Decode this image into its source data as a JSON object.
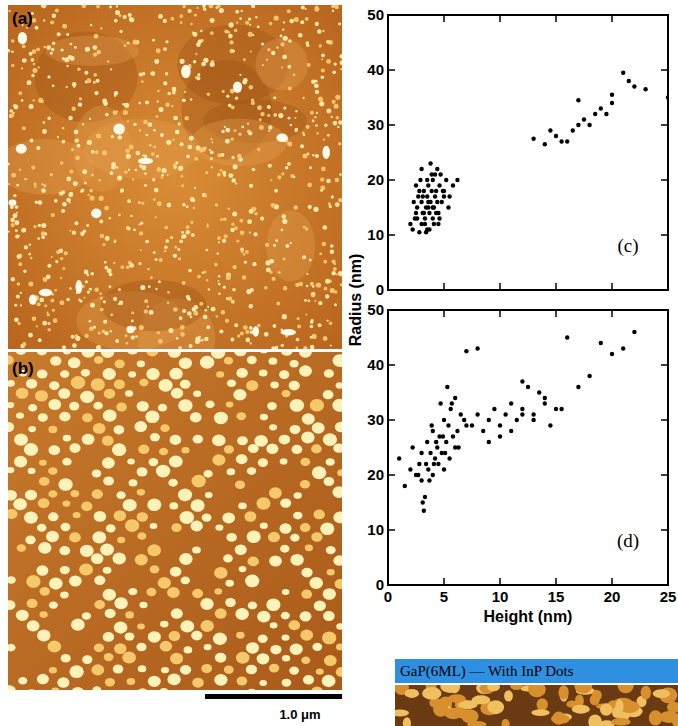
{
  "images": [
    {
      "label": "(a)"
    },
    {
      "label": "(b)"
    }
  ],
  "scale_bar": {
    "label": "1.0 μm"
  },
  "inset": {
    "title": "GaP(6ML) — With InP Dots"
  },
  "chart_data": [
    {
      "type": "scatter",
      "ylabel": "Radius (nm)",
      "annotations": [
        "(c)"
      ],
      "color": "#000000",
      "marker": "circle",
      "tick_labels": "y",
      "xlim": [
        0,
        25
      ],
      "xticks": [
        0,
        5,
        10,
        15,
        20,
        25
      ],
      "ylim": [
        0,
        50
      ],
      "yticks": [
        0,
        10,
        20,
        30,
        40,
        50
      ],
      "x": [
        2.0,
        2.2,
        2.4,
        2.5,
        2.6,
        2.8,
        3.0,
        3.0,
        3.1,
        3.2,
        3.3,
        3.4,
        3.5,
        3.5,
        3.6,
        3.7,
        3.8,
        3.9,
        4.0,
        4.0,
        4.1,
        4.2,
        4.3,
        4.4,
        4.5,
        4.6,
        4.8,
        5.0,
        5.2,
        5.5,
        5.8,
        6.2,
        2.3,
        2.7,
        2.9,
        3.3,
        3.6,
        3.9,
        4.2,
        4.6,
        5.0,
        5.4,
        2.5,
        3.0,
        3.4,
        3.8,
        4.1,
        4.4,
        3.2,
        3.7,
        4.3,
        4.7,
        2.8,
        3.5,
        4.0,
        3.1,
        4.9,
        2.6,
        3.6,
        4.5,
        13,
        14,
        14.5,
        15,
        15.5,
        16,
        16.5,
        17,
        17,
        17.5,
        18,
        18.5,
        19,
        19.5,
        20,
        20,
        21,
        21.5,
        22,
        23,
        25
      ],
      "values": [
        12,
        11,
        13,
        14,
        15,
        10.5,
        12,
        16,
        14,
        18,
        13,
        15,
        17,
        11,
        19,
        14,
        16,
        21,
        13,
        20,
        15,
        17,
        18,
        22,
        14,
        19,
        16,
        18,
        20,
        17,
        19,
        20,
        16,
        17,
        20,
        12,
        15,
        18,
        21,
        13,
        17,
        15,
        19,
        22,
        10.5,
        23,
        12,
        16,
        14,
        11,
        14,
        21,
        18,
        20,
        15,
        17,
        18,
        13,
        16,
        12,
        27.5,
        26.5,
        29,
        28,
        27,
        27,
        29,
        30,
        34.5,
        31,
        30,
        32,
        33,
        32,
        34,
        35.5,
        39.5,
        38,
        37,
        36.5,
        35
      ]
    },
    {
      "type": "scatter",
      "xlabel": "Height (nm)",
      "annotations": [
        "(d)"
      ],
      "color": "#000000",
      "marker": "circle",
      "xlim": [
        0,
        25
      ],
      "xticks": [
        0,
        5,
        10,
        15,
        20,
        25
      ],
      "ylim": [
        0,
        50
      ],
      "yticks": [
        0,
        10,
        20,
        30,
        40,
        50
      ],
      "x": [
        1.0,
        1.5,
        2.0,
        2.2,
        2.5,
        2.8,
        3.0,
        3.0,
        3.2,
        3.4,
        3.5,
        3.6,
        3.8,
        4.0,
        4.0,
        4.2,
        4.4,
        4.5,
        4.6,
        4.8,
        5.0,
        5.0,
        5.2,
        5.4,
        5.5,
        5.6,
        5.8,
        6.0,
        6.0,
        6.2,
        6.5,
        6.8,
        7.0,
        3.3,
        3.7,
        4.1,
        4.3,
        4.7,
        5.1,
        5.3,
        2.7,
        3.1,
        3.9,
        4.9,
        5.7,
        6.3,
        7.5,
        8,
        8.5,
        9,
        9.5,
        10,
        10.5,
        11,
        11.5,
        12,
        12.5,
        13,
        13.5,
        14,
        14.5,
        15,
        9,
        10,
        11,
        12,
        13,
        14,
        12,
        15.5,
        16,
        17,
        18,
        19,
        20,
        21,
        22,
        7,
        8
      ],
      "values": [
        23,
        18,
        21,
        25,
        20,
        22,
        19,
        24,
        13.5,
        22,
        26,
        21,
        24,
        20,
        28,
        23,
        25,
        22,
        27,
        24,
        21,
        30,
        26,
        29,
        23,
        32,
        27,
        25,
        34,
        28,
        31,
        30,
        29,
        16,
        19,
        22,
        26,
        33,
        24,
        36,
        20,
        15,
        29,
        27,
        33,
        25,
        29,
        31,
        28,
        30,
        32,
        29,
        31,
        33,
        30,
        32,
        36,
        31,
        35,
        33,
        29,
        32,
        26,
        27,
        28,
        37,
        30,
        34,
        31,
        32,
        45,
        36,
        38,
        44,
        42,
        43,
        46,
        42.5,
        43
      ]
    }
  ]
}
